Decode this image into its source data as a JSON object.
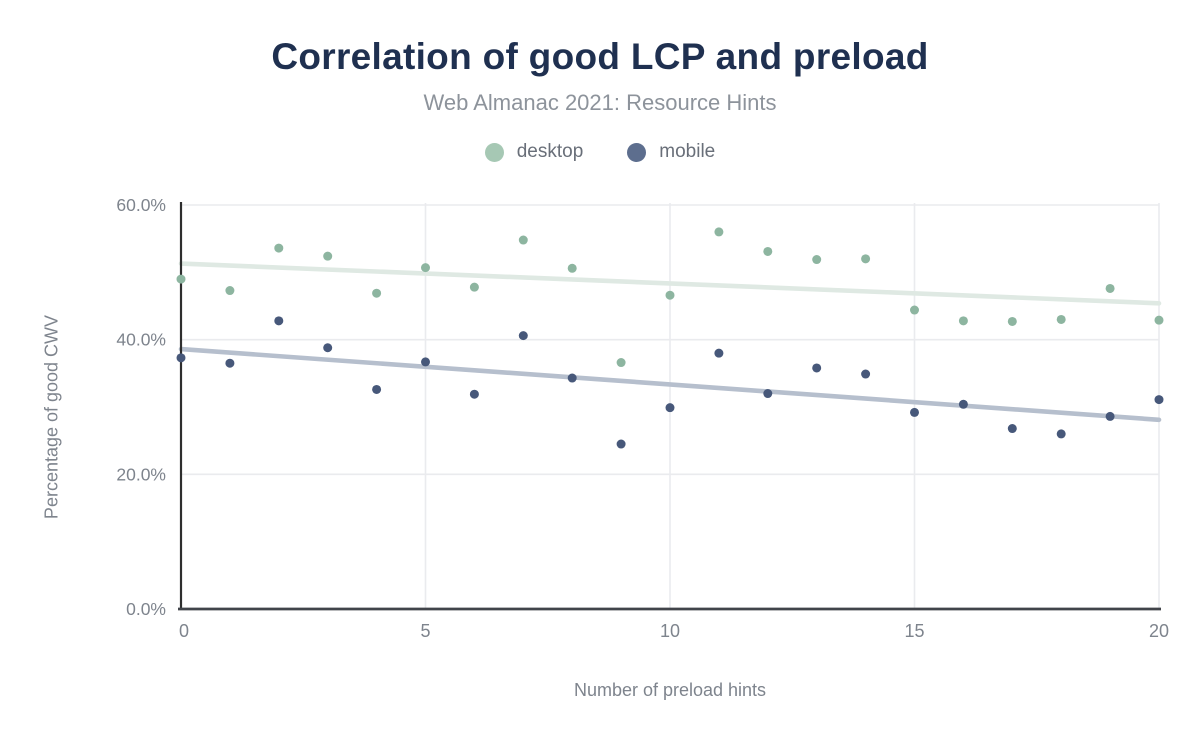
{
  "header": {
    "title": "Correlation of good LCP and preload",
    "subtitle": "Web Almanac 2021: Resource Hints"
  },
  "legend": {
    "items": [
      {
        "label": "desktop",
        "swatch_color": "#a6c8b4"
      },
      {
        "label": "mobile",
        "swatch_color": "#5d6e8e"
      }
    ]
  },
  "axes": {
    "y_title": "Percentage of good CWV",
    "x_title": "Number of preload hints",
    "y_tick_labels": [
      "0.0%",
      "20.0%",
      "40.0%",
      "60.0%"
    ],
    "x_tick_labels": [
      "0",
      "5",
      "10",
      "15",
      "20"
    ]
  },
  "chart_data": {
    "type": "scatter",
    "title": "Correlation of good LCP and preload",
    "subtitle": "Web Almanac 2021: Resource Hints",
    "xlabel": "Number of preload hints",
    "ylabel": "Percentage of good CWV",
    "xlim": [
      0,
      20
    ],
    "ylim": [
      0,
      60
    ],
    "x_ticks": [
      0,
      5,
      10,
      15,
      20
    ],
    "y_ticks": [
      0,
      20,
      40,
      60
    ],
    "y_tick_format": "percent_one_decimal",
    "grid": true,
    "legend_position": "top",
    "x": [
      0,
      1,
      2,
      3,
      4,
      5,
      6,
      7,
      8,
      9,
      10,
      11,
      12,
      13,
      14,
      15,
      16,
      17,
      18,
      19,
      20
    ],
    "series": [
      {
        "name": "desktop",
        "point_color": "#8db5a0",
        "values": [
          49.0,
          47.3,
          53.6,
          52.4,
          46.9,
          50.7,
          47.8,
          54.8,
          50.6,
          36.6,
          46.6,
          56.0,
          53.1,
          51.9,
          52.0,
          44.4,
          42.8,
          42.7,
          43.0,
          47.6,
          42.9
        ]
      },
      {
        "name": "mobile",
        "point_color": "#47587a",
        "values": [
          37.3,
          36.5,
          42.8,
          38.8,
          32.6,
          36.7,
          31.9,
          40.6,
          34.3,
          24.5,
          29.9,
          38.0,
          32.0,
          35.8,
          34.9,
          29.2,
          30.4,
          26.8,
          26.0,
          28.6,
          31.1
        ]
      }
    ],
    "trendlines": [
      {
        "series": "desktop",
        "color": "#dfe9e3",
        "start": [
          0,
          51.3
        ],
        "end": [
          20,
          45.4
        ]
      },
      {
        "series": "mobile",
        "color": "#b6bfcd",
        "start": [
          0,
          38.6
        ],
        "end": [
          20,
          28.1
        ]
      }
    ],
    "style": {
      "gridline_color": "#eaebee",
      "y_axis_line_color": "#2e2e2e",
      "x_axis_line_color": "#41444a",
      "title_color": "#1f3050",
      "subtitle_color": "#8d939b",
      "tick_label_color": "#7e848d"
    }
  }
}
